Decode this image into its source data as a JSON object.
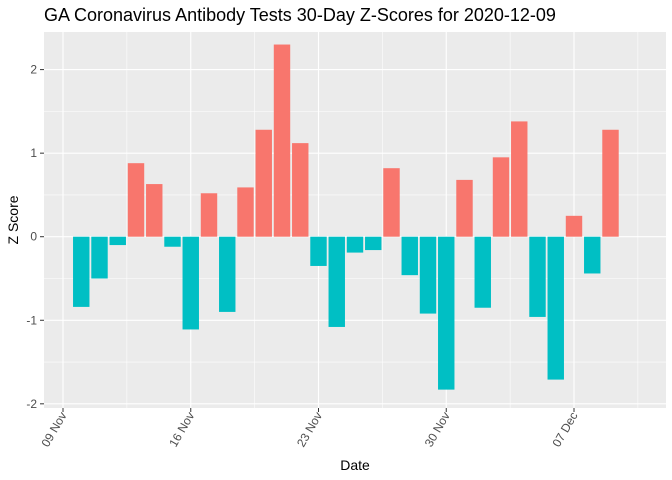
{
  "chart_data": {
    "type": "bar",
    "title": "GA Coronavirus Antibody Tests 30-Day Z-Scores for 2020-12-09",
    "xlabel": "Date",
    "ylabel": "Z Score",
    "x_tick_labels": [
      "09 Nov",
      "16 Nov",
      "23 Nov",
      "30 Nov",
      "07 Dec"
    ],
    "y_tick_labels": [
      "-2",
      "-1",
      "0",
      "1",
      "2"
    ],
    "ylim": [
      -2.05,
      2.45
    ],
    "xlim": [
      "2020-11-09",
      "2020-12-11"
    ],
    "grid": true,
    "legend": "none",
    "colors": {
      "positive": "#F8766D",
      "negative": "#00BFC4",
      "panel": "#EBEBEB",
      "grid": "#FFFFFF"
    },
    "x": [
      "2020-11-10",
      "2020-11-11",
      "2020-11-12",
      "2020-11-13",
      "2020-11-14",
      "2020-11-15",
      "2020-11-16",
      "2020-11-17",
      "2020-11-18",
      "2020-11-19",
      "2020-11-20",
      "2020-11-21",
      "2020-11-22",
      "2020-11-23",
      "2020-11-24",
      "2020-11-25",
      "2020-11-26",
      "2020-11-27",
      "2020-11-28",
      "2020-11-29",
      "2020-11-30",
      "2020-12-01",
      "2020-12-02",
      "2020-12-03",
      "2020-12-04",
      "2020-12-05",
      "2020-12-06",
      "2020-12-07",
      "2020-12-08",
      "2020-12-09"
    ],
    "values": [
      -0.84,
      -0.5,
      -0.1,
      0.88,
      0.63,
      -0.12,
      -1.11,
      0.52,
      -0.9,
      0.59,
      1.28,
      2.3,
      1.12,
      -0.35,
      -1.08,
      -0.19,
      -0.16,
      0.82,
      -0.46,
      -0.92,
      -1.83,
      0.68,
      -0.85,
      0.95,
      1.38,
      -0.96,
      -1.71,
      0.25,
      -0.44,
      1.28
    ]
  }
}
